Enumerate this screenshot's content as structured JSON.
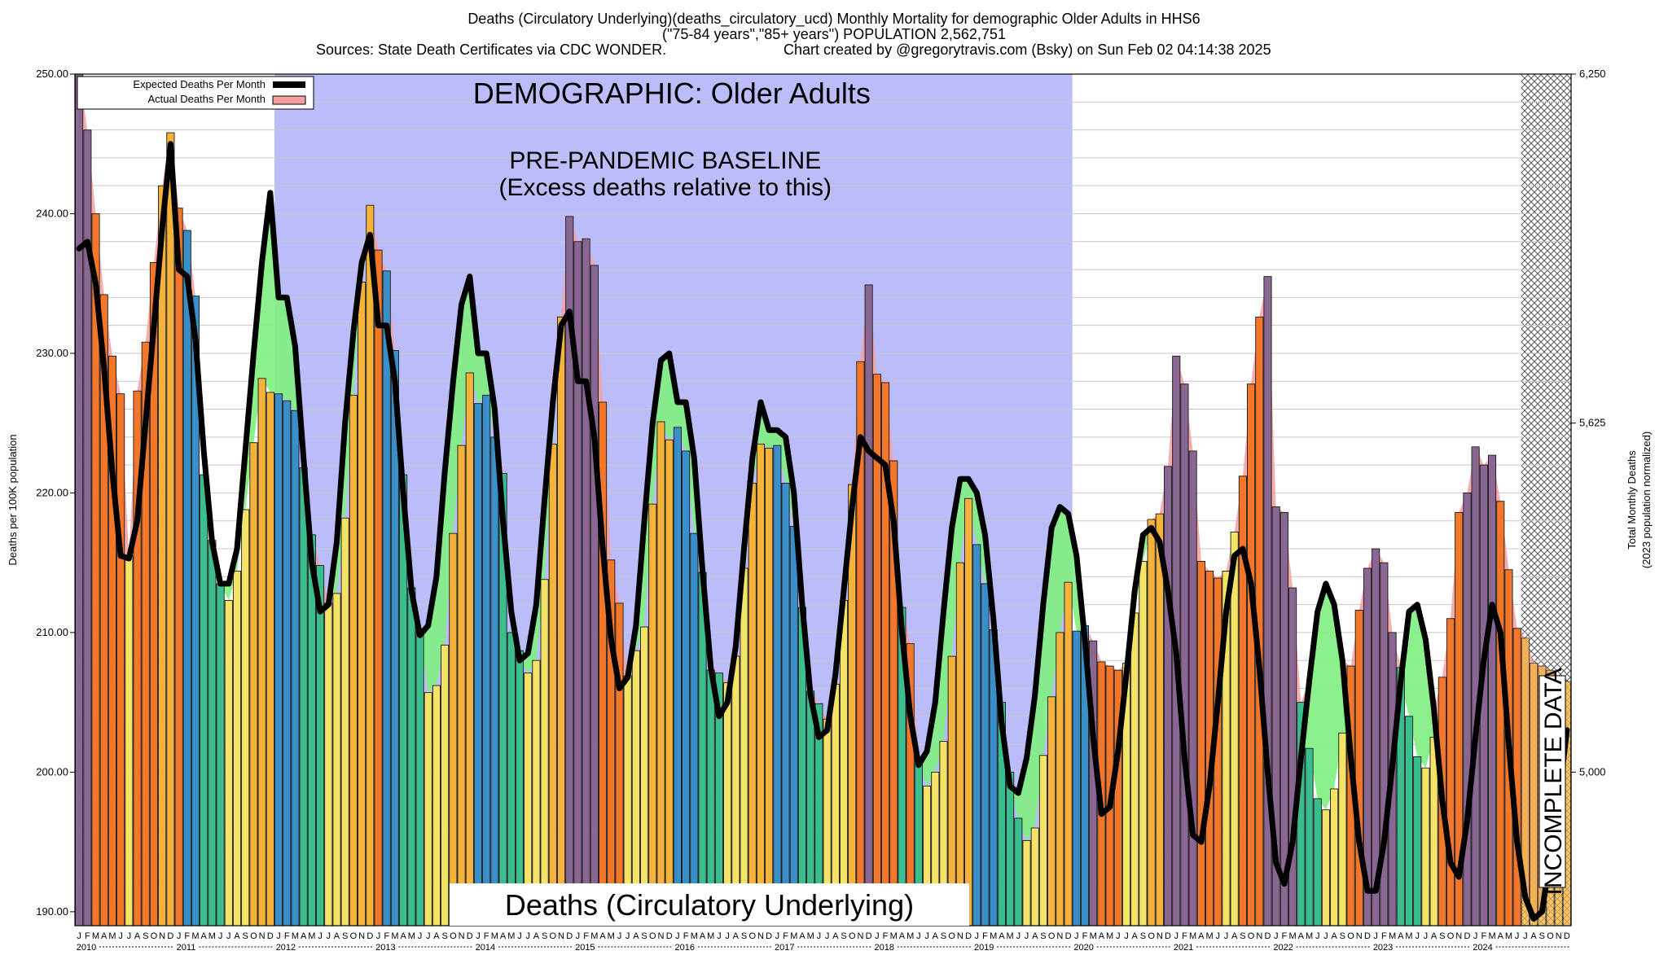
{
  "header": {
    "line1": "Deaths (Circulatory Underlying)(deaths_circulatory_ucd) Monthly Mortality for demographic Older Adults in HHS6",
    "line2": "(\"75-84 years\",\"85+ years\") POPULATION 2,562,751",
    "line3_left": "Sources: State Death Certificates via CDC WONDER.",
    "line3_right": "Chart created by @gregorytravis.com (Bsky) on Sun Feb 02 04:14:38 2025"
  },
  "chart_data": {
    "type": "bar",
    "title": "Deaths (Circulatory Underlying)(deaths_circulatory_ucd) Monthly Mortality for demographic Older Adults in HHS6",
    "ylabel": "Deaths per 100K population",
    "y2label_line1": "Total Monthly Deaths",
    "y2label_line2": "(2023 population normalized)",
    "ylim": [
      189.0,
      250.0
    ],
    "y_ticks": [
      "190.00",
      "200.00",
      "210.00",
      "220.00",
      "230.00",
      "240.00",
      "250.00"
    ],
    "y_tick_values": [
      190,
      200,
      210,
      220,
      230,
      240,
      250
    ],
    "y2_ticks": [
      "5,000",
      "5,625",
      "6,250"
    ],
    "y2_tick_values": [
      200,
      225,
      250
    ],
    "years": [
      "2010",
      "2011",
      "2012",
      "2013",
      "2014",
      "2015",
      "2016",
      "2017",
      "2018",
      "2019",
      "2020",
      "2021",
      "2022",
      "2023",
      "2024"
    ],
    "month_letters": [
      "J",
      "F",
      "M",
      "A",
      "M",
      "J",
      "J",
      "A",
      "S",
      "O",
      "N",
      "D"
    ],
    "month_label_rows": [
      "J FMAMJ J ASOND",
      "J FMAMJ J ASOND",
      "J FMAMJ J ASOND",
      "J FMAMJ J ASOND",
      "J FMAMJ J ASOND",
      "J FMAMJ J ASOND",
      "J FMAMJ J ASOND",
      "J FMAMJ J ASOND",
      "J FMAMJ J ASOND",
      "J FMAMJ J ASOND",
      "J FMAMJ J ASOND",
      "J FMAMJ J ASOND",
      "J FMAMJ J ASOND",
      "J FMAMJ J ASOND",
      "J FMAMJ J ASOND"
    ],
    "actual": [
      [
        250.0,
        246.0,
        240.0,
        234.2,
        229.8,
        227.1,
        215.5,
        227.3,
        230.8,
        236.5,
        242.0,
        245.8
      ],
      [
        240.4,
        238.8,
        234.1,
        221.3,
        216.6,
        213.5,
        212.3,
        214.4,
        218.8,
        223.6,
        228.2,
        227.2
      ],
      [
        227.1,
        226.6,
        225.9,
        221.8,
        217.0,
        214.8,
        212.1,
        212.8,
        218.2,
        227.0,
        235.1,
        240.6
      ],
      [
        237.4,
        235.9,
        230.2,
        221.3,
        213.2,
        210.1,
        205.7,
        206.2,
        209.1,
        217.1,
        223.4,
        228.6
      ],
      [
        226.4,
        227.0,
        224.0,
        221.4,
        210.0,
        208.7,
        207.1,
        208.0,
        213.8,
        223.5,
        232.6,
        239.8
      ],
      [
        238.0,
        238.2,
        236.3,
        226.5,
        215.2,
        212.1,
        206.9,
        208.7,
        210.4,
        219.2,
        225.1,
        223.8
      ],
      [
        224.7,
        223.0,
        217.1,
        214.3,
        207.3,
        207.1,
        206.4,
        208.3,
        214.6,
        220.7,
        223.5,
        223.2
      ],
      [
        223.4,
        220.7,
        217.6,
        211.8,
        205.8,
        204.9,
        203.8,
        206.3,
        212.3,
        220.6,
        229.4,
        234.9
      ],
      [
        228.5,
        227.9,
        222.3,
        211.8,
        209.2,
        201.1,
        199.0,
        200.0,
        202.2,
        208.3,
        215.0,
        219.6
      ],
      [
        216.3,
        213.5,
        210.2,
        205.0,
        200.0,
        196.7,
        195.1,
        196.0,
        201.2,
        205.4,
        210.0,
        213.6
      ],
      [
        210.1,
        210.5,
        209.4,
        207.9,
        207.6,
        207.3,
        207.8,
        211.4,
        215.1,
        218.1,
        218.5,
        221.9
      ],
      [
        229.8,
        227.8,
        223.0,
        215.1,
        214.4,
        213.9,
        214.4,
        217.2,
        221.2,
        227.8,
        232.6,
        235.5
      ],
      [
        219.0,
        218.6,
        213.2,
        205.0,
        201.7,
        198.1,
        197.3,
        198.8,
        202.8,
        207.6,
        211.6,
        214.6
      ],
      [
        216.0,
        215.0,
        210.0,
        207.5,
        204.0,
        201.1,
        200.3,
        202.5,
        206.8,
        211.0,
        218.6,
        220.0
      ],
      [
        223.3,
        222.0,
        222.7,
        219.4,
        214.5,
        210.3,
        209.6,
        207.8,
        207.6,
        207.3,
        206.9,
        206.5
      ]
    ],
    "expected": [
      [
        237.5,
        238.0,
        235.0,
        229.0,
        221.5,
        215.5,
        215.3,
        218.0,
        225.0,
        232.0,
        239.0,
        245.0
      ],
      [
        236.0,
        235.5,
        231.0,
        223.0,
        216.5,
        213.5,
        213.5,
        216.0,
        223.0,
        230.0,
        236.5,
        241.5
      ],
      [
        234.0,
        234.0,
        230.5,
        222.5,
        215.0,
        211.5,
        212.0,
        216.5,
        225.0,
        231.5,
        236.5,
        238.5
      ],
      [
        232.0,
        232.0,
        228.0,
        220.0,
        213.0,
        209.8,
        210.5,
        214.0,
        221.5,
        228.0,
        233.5,
        235.5
      ],
      [
        230.0,
        230.0,
        226.0,
        218.0,
        211.5,
        208.0,
        208.5,
        212.0,
        219.5,
        226.5,
        232.0,
        233.0
      ],
      [
        228.0,
        228.0,
        224.0,
        216.0,
        209.5,
        206.0,
        206.8,
        210.5,
        218.0,
        225.0,
        229.5,
        230.0
      ],
      [
        226.5,
        226.5,
        222.5,
        214.5,
        207.5,
        204.0,
        205.0,
        209.0,
        216.0,
        222.5,
        226.5,
        224.5
      ],
      [
        224.5,
        224.0,
        220.0,
        212.0,
        205.5,
        202.5,
        203.0,
        207.0,
        213.0,
        219.0,
        224.0,
        223.0
      ],
      [
        222.5,
        222.0,
        218.0,
        210.0,
        204.0,
        200.5,
        201.5,
        205.0,
        211.5,
        217.5,
        221.0,
        221.0
      ],
      [
        220.0,
        217.0,
        211.0,
        203.5,
        199.0,
        198.5,
        201.0,
        205.5,
        212.0,
        217.5,
        219.0,
        218.5
      ],
      [
        215.5,
        209.5,
        202.5,
        197.0,
        197.5,
        201.5,
        207.0,
        213.0,
        217.0,
        217.5,
        216.5,
        213.0
      ],
      [
        208.5,
        201.0,
        195.5,
        195.0,
        199.0,
        205.0,
        211.5,
        215.5,
        216.0,
        213.5,
        207.5,
        200.0
      ],
      [
        193.5,
        192.0,
        195.0,
        201.0,
        206.5,
        211.5,
        213.5,
        212.0,
        208.0,
        201.0,
        195.0,
        191.5
      ],
      [
        191.5,
        195.0,
        200.5,
        206.5,
        211.5,
        212.0,
        209.5,
        204.5,
        198.0,
        193.5,
        192.5,
        196.5
      ],
      [
        202.5,
        208.0,
        212.0,
        210.0,
        202.0,
        195.0,
        191.0,
        189.5,
        190.0,
        194.0,
        198.0,
        203.0
      ]
    ],
    "colors": {
      "winter_blue": "#3a8fc8",
      "spring_green": "#3cbd8e",
      "summer_yellow": "#f5e368",
      "autumn_orange": "#f5b33c",
      "excess_orange": "#f2772a",
      "excess_purple": "#8a6792",
      "excess_fill_red": "#f5a0a0",
      "deficit_fill_green": "#80f080",
      "baseline_shade": "#bcbcfa",
      "expected_line": "#000000"
    },
    "legend": {
      "expected_label": "Expected Deaths Per Month",
      "actual_label": "Actual Deaths Per Month",
      "position": "top-left"
    },
    "annotations": {
      "demographic": "DEMOGRAPHIC: Older Adults",
      "baseline_line1": "PRE-PANDEMIC BASELINE",
      "baseline_line2": "(Excess deaths relative to this)",
      "bottom_label": "Deaths (Circulatory Underlying)",
      "incomplete": "INCOMPLETE DATA"
    },
    "baseline_period": [
      "2012-01",
      "2019-12"
    ],
    "incomplete_months": [
      "2024-07",
      "2024-12"
    ],
    "grid": true
  }
}
